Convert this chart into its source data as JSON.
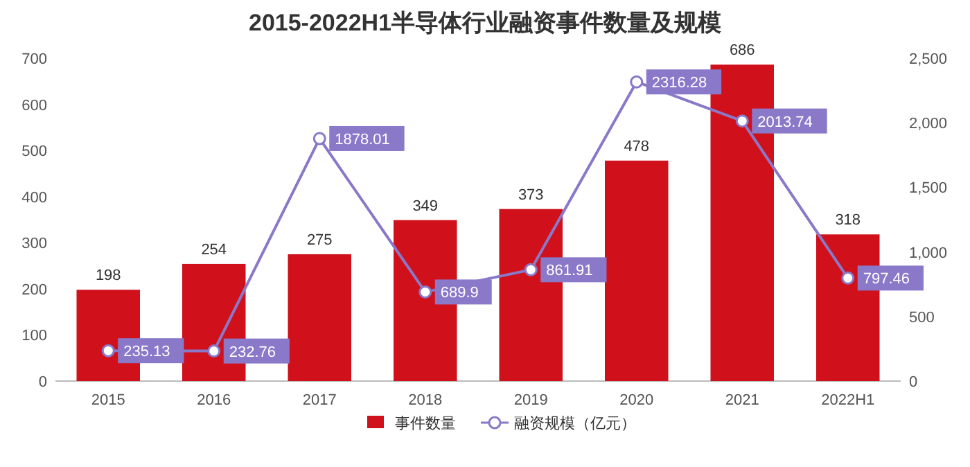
{
  "chart_data": {
    "type": "bar",
    "title": "2015-2022H1半导体行业融资事件数量及规模",
    "categories": [
      "2015",
      "2016",
      "2017",
      "2018",
      "2019",
      "2020",
      "2021",
      "2022H1"
    ],
    "series": [
      {
        "name": "事件数量",
        "color": "#d0101b",
        "values": [
          198,
          254,
          275,
          349,
          373,
          478,
          686,
          318
        ]
      },
      {
        "name": "融资规模（亿元）",
        "type": "line",
        "axis": "y2",
        "color": "#8a78c8",
        "values": [
          235.13,
          232.76,
          1878.01,
          689.9,
          861.91,
          2316.28,
          2013.74,
          797.46
        ]
      }
    ],
    "ylim": [
      0,
      700
    ],
    "yticks": [
      0,
      100,
      200,
      300,
      400,
      500,
      600,
      700
    ],
    "y2lim": [
      0,
      2500
    ],
    "y2ticks": [
      0,
      500,
      {
        "value": 1000,
        "label": "1,000"
      },
      {
        "value": 1500,
        "label": "1,500"
      },
      {
        "value": 2000,
        "label": "2,000"
      },
      {
        "value": 2500,
        "label": "2,500"
      }
    ],
    "data_labels": true,
    "marker": "circle",
    "legend": "bottom",
    "grid": false
  }
}
